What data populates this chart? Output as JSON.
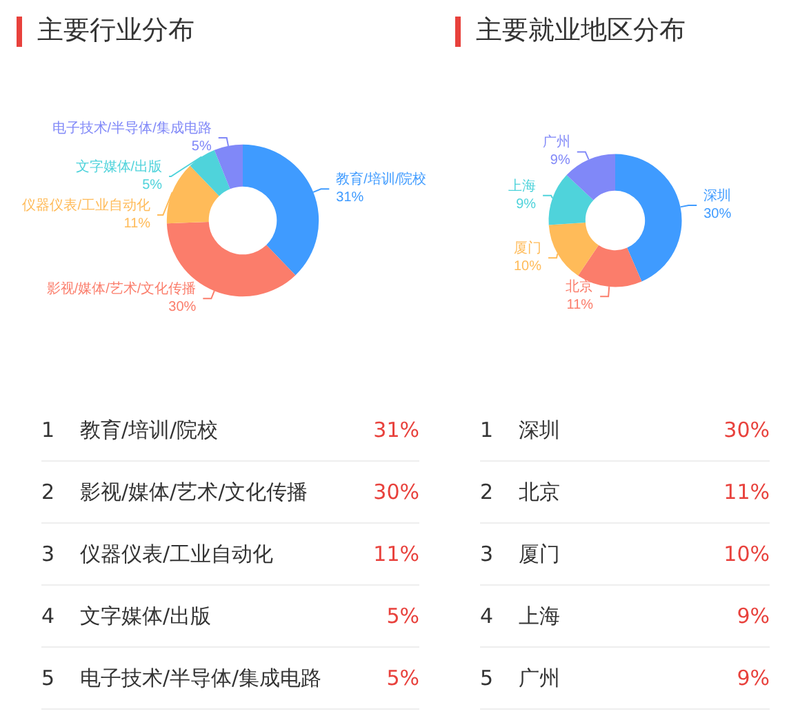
{
  "chart_data": [
    {
      "type": "donut",
      "title": "主要行业分布",
      "categories": [
        "教育/培训/院校",
        "影视/媒体/艺术/文化传播",
        "仪器仪表/工业自动化",
        "文字媒体/出版",
        "电子技术/半导体/集成电路"
      ],
      "values": [
        31,
        30,
        11,
        5,
        5
      ],
      "value_labels": [
        "31%",
        "30%",
        "11%",
        "5%",
        "5%"
      ],
      "annotations": [
        "1",
        "2",
        "3",
        "4",
        "5"
      ],
      "colors": [
        "#3f9bff",
        "#fb7d6b",
        "#ffbb59",
        "#4fd3db",
        "#8088f8"
      ],
      "legend": false
    },
    {
      "type": "donut",
      "title": "主要就业地区分布",
      "categories": [
        "深圳",
        "北京",
        "厦门",
        "上海",
        "广州"
      ],
      "values": [
        30,
        11,
        10,
        9,
        9
      ],
      "value_labels": [
        "30%",
        "11%",
        "10%",
        "9%",
        "9%"
      ],
      "annotations": [
        "1",
        "2",
        "3",
        "4",
        "5"
      ],
      "colors": [
        "#3f9bff",
        "#fb7d6b",
        "#ffbb59",
        "#4fd3db",
        "#8088f8"
      ],
      "legend": false
    }
  ]
}
